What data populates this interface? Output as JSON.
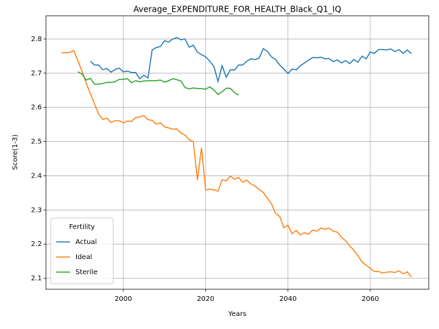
{
  "chart_data": {
    "type": "line",
    "title": "Average_EXPENDITURE_FOR_HEALTH_Black_Q1_IQ",
    "xlabel": "Years",
    "ylabel": "Score(1-3)",
    "legend_title": "Fertility",
    "legend": "lower left",
    "grid": true,
    "xlim": [
      1981.2,
      2074.2
    ],
    "ylim": [
      2.068,
      2.868
    ],
    "xticks": [
      2000,
      2020,
      2040,
      2060
    ],
    "yticks": [
      2.1,
      2.2,
      2.3,
      2.4,
      2.5,
      2.6,
      2.7,
      2.8
    ],
    "x": [
      1985,
      1986,
      1987,
      1988,
      1989,
      1990,
      1991,
      1992,
      1993,
      1994,
      1995,
      1996,
      1997,
      1998,
      1999,
      2000,
      2001,
      2002,
      2003,
      2004,
      2005,
      2006,
      2007,
      2008,
      2009,
      2010,
      2011,
      2012,
      2013,
      2014,
      2015,
      2016,
      2017,
      2018,
      2019,
      2020,
      2021,
      2022,
      2023,
      2024,
      2025,
      2026,
      2027,
      2028,
      2029,
      2030,
      2031,
      2032,
      2033,
      2034,
      2035,
      2036,
      2037,
      2038,
      2039,
      2040,
      2041,
      2042,
      2043,
      2044,
      2045,
      2046,
      2047,
      2048,
      2049,
      2050,
      2051,
      2052,
      2053,
      2054,
      2055,
      2056,
      2057,
      2058,
      2059,
      2060,
      2061,
      2062,
      2063,
      2064,
      2065,
      2066,
      2067,
      2068,
      2069,
      2070
    ],
    "series": [
      {
        "name": "Actual",
        "color": "#1f77b4",
        "values": [
          null,
          null,
          null,
          null,
          null,
          null,
          null,
          2.735,
          2.724,
          2.724,
          2.71,
          2.714,
          2.703,
          2.711,
          2.715,
          2.704,
          2.706,
          2.702,
          2.702,
          2.684,
          2.694,
          2.686,
          2.768,
          2.775,
          2.778,
          2.795,
          2.791,
          2.8,
          2.804,
          2.798,
          2.8,
          2.776,
          2.782,
          2.762,
          2.754,
          2.748,
          2.735,
          2.72,
          2.676,
          2.722,
          2.688,
          2.71,
          2.709,
          2.724,
          2.724,
          2.735,
          2.742,
          2.74,
          2.744,
          2.772,
          2.764,
          2.748,
          2.74,
          2.724,
          2.712,
          2.699,
          2.712,
          2.71,
          2.722,
          2.73,
          2.738,
          2.746,
          2.745,
          2.747,
          2.742,
          2.743,
          2.734,
          2.739,
          2.73,
          2.737,
          2.728,
          2.74,
          2.732,
          2.75,
          2.742,
          2.762,
          2.758,
          2.769,
          2.769,
          2.768,
          2.771,
          2.763,
          2.769,
          2.758,
          2.768,
          2.757
        ]
      },
      {
        "name": "Ideal",
        "color": "#ff7f0e",
        "values": [
          2.76,
          2.76,
          2.761,
          2.766,
          2.735,
          2.705,
          2.67,
          2.64,
          2.61,
          2.58,
          2.565,
          2.568,
          2.556,
          2.561,
          2.561,
          2.555,
          2.56,
          2.559,
          2.57,
          2.572,
          2.576,
          2.564,
          2.562,
          2.551,
          2.555,
          2.543,
          2.54,
          2.536,
          2.537,
          2.525,
          2.519,
          2.505,
          2.5,
          2.388,
          2.482,
          2.358,
          2.361,
          2.359,
          2.355,
          2.388,
          2.385,
          2.399,
          2.39,
          2.395,
          2.381,
          2.387,
          2.376,
          2.37,
          2.36,
          2.351,
          2.334,
          2.318,
          2.29,
          2.281,
          2.248,
          2.255,
          2.23,
          2.24,
          2.227,
          2.233,
          2.229,
          2.241,
          2.238,
          2.247,
          2.243,
          2.247,
          2.238,
          2.235,
          2.22,
          2.21,
          2.195,
          2.182,
          2.166,
          2.148,
          2.138,
          2.129,
          2.12,
          2.12,
          2.116,
          2.118,
          2.119,
          2.117,
          2.122,
          2.113,
          2.119,
          2.104
        ]
      },
      {
        "name": "Sterile",
        "color": "#2ca02c",
        "values": [
          null,
          null,
          null,
          null,
          2.704,
          2.697,
          2.68,
          2.685,
          2.668,
          2.668,
          2.67,
          2.673,
          2.673,
          2.675,
          2.682,
          2.682,
          2.684,
          2.672,
          2.678,
          2.675,
          2.677,
          2.678,
          2.678,
          2.678,
          2.68,
          2.674,
          2.678,
          2.684,
          2.681,
          2.677,
          2.658,
          2.654,
          2.657,
          2.655,
          2.655,
          2.653,
          2.66,
          2.651,
          2.638,
          2.646,
          2.656,
          2.656,
          2.643,
          2.636,
          null,
          null,
          null,
          null,
          null,
          null,
          null,
          null,
          null,
          null,
          null,
          null,
          null,
          null,
          null,
          null,
          null,
          null,
          null,
          null,
          null,
          null,
          null,
          null,
          null,
          null,
          null,
          null,
          null,
          null,
          null,
          null,
          null,
          null,
          null,
          null,
          null,
          null,
          null,
          null,
          null,
          null
        ]
      }
    ]
  }
}
